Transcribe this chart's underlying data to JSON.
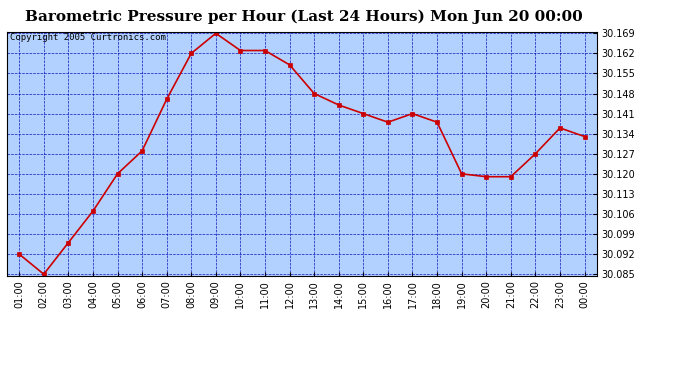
{
  "title": "Barometric Pressure per Hour (Last 24 Hours) Mon Jun 20 00:00",
  "copyright": "Copyright 2005 Curtronics.com",
  "x_labels": [
    "01:00",
    "02:00",
    "03:00",
    "04:00",
    "05:00",
    "06:00",
    "07:00",
    "08:00",
    "09:00",
    "10:00",
    "11:00",
    "12:00",
    "13:00",
    "14:00",
    "15:00",
    "16:00",
    "17:00",
    "18:00",
    "19:00",
    "20:00",
    "21:00",
    "22:00",
    "23:00",
    "00:00"
  ],
  "y_values": [
    30.092,
    30.085,
    30.096,
    30.107,
    30.12,
    30.128,
    30.146,
    30.162,
    30.169,
    30.163,
    30.163,
    30.158,
    30.148,
    30.144,
    30.141,
    30.138,
    30.141,
    30.138,
    30.12,
    30.119,
    30.119,
    30.127,
    30.136,
    30.133
  ],
  "y_min": 30.085,
  "y_max": 30.169,
  "line_color": "#cc0000",
  "marker_color": "#cc0000",
  "bg_color": "#ffffff",
  "plot_bg_color": "#b3d1ff",
  "grid_color": "#0000bb",
  "title_fontsize": 11,
  "tick_fontsize": 7,
  "copyright_fontsize": 6.5,
  "y_ticks": [
    30.085,
    30.092,
    30.099,
    30.106,
    30.113,
    30.12,
    30.127,
    30.134,
    30.141,
    30.148,
    30.155,
    30.162,
    30.169
  ]
}
